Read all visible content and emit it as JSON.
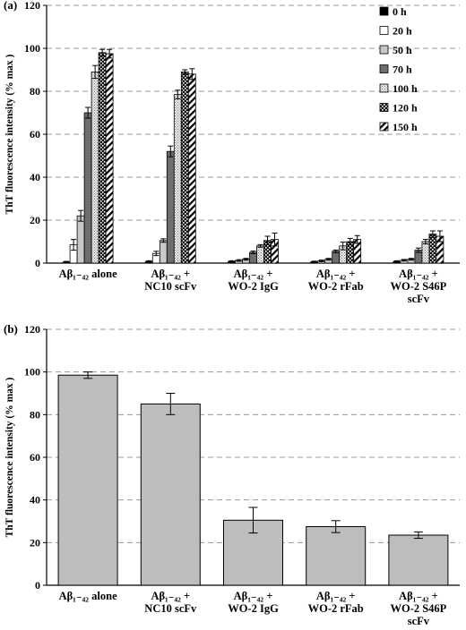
{
  "chart_data": [
    {
      "type": "bar",
      "panel_label": "(a)",
      "ylabel": "ThT fluorescence intensity (% max )",
      "ylim": [
        0,
        120
      ],
      "yticks": [
        "0",
        "20",
        "40",
        "60",
        "80",
        "100",
        "120"
      ],
      "grid": "horizontal dashed",
      "legend_position": "top-right",
      "categories": [
        {
          "line1": "Aβ₁₋₄₂ alone",
          "line2": "",
          "line3": ""
        },
        {
          "line1": "Aβ₁₋₄₂ +",
          "line2": "NC10 scFv",
          "line3": ""
        },
        {
          "line1": "Aβ₁₋₄₂ +",
          "line2": "WO-2 IgG",
          "line3": ""
        },
        {
          "line1": "Aβ₁₋₄₂ +",
          "line2": "WO-2 rFab",
          "line3": ""
        },
        {
          "line1": "Aβ₁₋₄₂ +",
          "line2": "WO-2 S46P",
          "line3": "scFv"
        }
      ],
      "series": [
        {
          "name": "0 h",
          "pattern": "solid-black",
          "values": [
            0.5,
            0.8,
            0.8,
            0.6,
            0.8
          ],
          "errors": [
            0.3,
            0.3,
            0.3,
            0.3,
            0.3
          ]
        },
        {
          "name": "20 h",
          "pattern": "white",
          "values": [
            8.5,
            4.5,
            1.2,
            1.0,
            1.3
          ],
          "errors": [
            2.5,
            1.0,
            0.4,
            0.4,
            0.4
          ]
        },
        {
          "name": "50 h",
          "pattern": "light-gray",
          "values": [
            22,
            10.5,
            1.8,
            1.8,
            1.8
          ],
          "errors": [
            2.5,
            0.8,
            0.4,
            0.4,
            0.4
          ]
        },
        {
          "name": "70 h",
          "pattern": "dark-gray",
          "values": [
            70,
            52,
            5,
            5.5,
            6
          ],
          "errors": [
            2.5,
            2.5,
            0.6,
            0.6,
            1.0
          ]
        },
        {
          "name": "100 h",
          "pattern": "dotted-light",
          "values": [
            89,
            78.5,
            8,
            8,
            10
          ],
          "errors": [
            3.0,
            2.0,
            0.6,
            1.8,
            1.0
          ]
        },
        {
          "name": "120 h",
          "pattern": "checkered",
          "values": [
            98,
            89,
            10.5,
            10,
            13.5
          ],
          "errors": [
            1.5,
            1.0,
            2.0,
            1.5,
            1.5
          ]
        },
        {
          "name": "150 h",
          "pattern": "diagonal-hatch",
          "values": [
            97.5,
            88,
            11,
            11,
            12.5
          ],
          "errors": [
            2.0,
            2.5,
            3.0,
            1.8,
            2.5
          ]
        }
      ]
    },
    {
      "type": "bar",
      "panel_label": "(b)",
      "ylabel": "ThT fluorescence intensity (% max )",
      "ylim": [
        0,
        120
      ],
      "yticks": [
        "0",
        "20",
        "40",
        "60",
        "80",
        "100",
        "120"
      ],
      "grid": "horizontal dashed",
      "categories": [
        {
          "line1": "Aβ₁₋₄₂ alone",
          "line2": "",
          "line3": ""
        },
        {
          "line1": "Aβ₁₋₄₂ +",
          "line2": "NC10 scFv",
          "line3": ""
        },
        {
          "line1": "Aβ₁₋₄₂ +",
          "line2": "WO-2 IgG",
          "line3": ""
        },
        {
          "line1": "Aβ₁₋₄₂ +",
          "line2": "WO-2 rFab",
          "line3": ""
        },
        {
          "line1": "Aβ₁₋₄₂ +",
          "line2": "WO-2 S46P",
          "line3": "scFv"
        }
      ],
      "values": [
        98.5,
        85,
        30.5,
        27.5,
        23.5
      ],
      "errors": [
        1.5,
        5.0,
        6.0,
        2.8,
        1.5
      ],
      "bar_color": "#bdbdbd"
    }
  ],
  "colors": {
    "axis": "#000000",
    "grid": "#9a9a9a",
    "light_gray": "#c8c8c8",
    "dark_gray": "#6e6e6e",
    "bar_b": "#bdbdbd"
  }
}
